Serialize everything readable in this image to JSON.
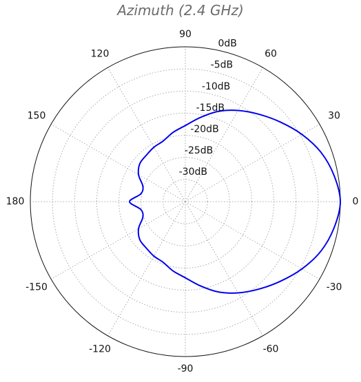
{
  "chart_data": {
    "type": "polar-line",
    "title": "Azimuth (2.4 GHz)",
    "angle_unit": "degrees",
    "angle_zero": "right",
    "angle_direction": "counterclockwise",
    "angle_ticks": [
      "0",
      "30",
      "60",
      "90",
      "120",
      "150",
      "180",
      "-150",
      "-120",
      "-90",
      "-60",
      "-30"
    ],
    "radial_range": [
      -35,
      0
    ],
    "radial_ticks": [
      0,
      -5,
      -10,
      -15,
      -20,
      -25,
      -30
    ],
    "radial_tick_labels": [
      "0dB",
      "-5dB",
      "-10dB",
      "-15dB",
      "-20dB",
      "-25dB",
      "-30dB"
    ],
    "grid": true,
    "series": [
      {
        "color": "#0000ee",
        "angles": [
          0,
          10,
          20,
          30,
          40,
          50,
          60,
          70,
          80,
          90,
          100,
          110,
          120,
          130,
          140,
          150,
          160,
          170,
          180,
          190,
          200,
          210,
          220,
          230,
          240,
          250,
          260,
          270,
          280,
          290,
          300,
          310,
          320,
          330,
          340,
          350
        ],
        "values": [
          0,
          -0.9,
          -2.4,
          -4.6,
          -7.0,
          -9.2,
          -11.2,
          -13.3,
          -15.7,
          -17.8,
          -19.1,
          -20.4,
          -20.8,
          -21.3,
          -21.6,
          -22.8,
          -24.8,
          -24.8,
          -22.4,
          -24.8,
          -24.8,
          -22.8,
          -21.6,
          -21.3,
          -20.8,
          -20.4,
          -19.1,
          -17.8,
          -15.7,
          -13.3,
          -11.2,
          -9.2,
          -7.0,
          -4.6,
          -2.4,
          -0.9
        ]
      }
    ]
  }
}
